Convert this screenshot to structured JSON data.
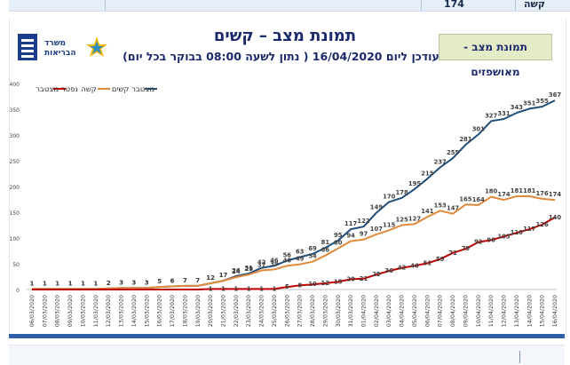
{
  "top_bar": {
    "label": "קשה",
    "value": "174"
  },
  "header": {
    "title": "תמונת מצב – קשים",
    "subtitle": "מעודכן ליום 16/04/2020 ( נתון לשעה 08:00 בבוקר בכל יום)",
    "tag": "תמונת מצב - מאושפזים"
  },
  "logo": {
    "line1": "משרד",
    "line2": "הבריאות"
  },
  "colors": {
    "cumulative": "#1f4e79",
    "severe": "#e08a3c",
    "deaths": "#c00000",
    "tag_bg": "#e4ecc7",
    "title": "#1b2a6b"
  },
  "chart_data": {
    "type": "line",
    "x": [
      "06/03/2020",
      "07/03/2020",
      "08/03/2020",
      "09/03/2020",
      "10/03/2020",
      "11/03/2020",
      "12/03/2020",
      "13/03/2020",
      "14/03/2020",
      "15/03/2020",
      "16/03/2020",
      "17/03/2020",
      "18/03/2020",
      "19/03/2020",
      "20/03/2020",
      "21/03/2020",
      "22/03/2020",
      "23/03/2020",
      "24/03/2020",
      "25/03/2020",
      "26/03/2020",
      "27/03/2020",
      "28/03/2020",
      "29/03/2020",
      "30/03/2020",
      "31/03/2020",
      "01/04/2020",
      "02/04/2020",
      "03/04/2020",
      "04/04/2020",
      "05/04/2020",
      "06/04/2020",
      "07/04/2020",
      "08/04/2020",
      "09/04/2020",
      "10/04/2020",
      "11/04/2020",
      "12/04/2020",
      "13/04/2020",
      "14/04/2020",
      "15/04/2020",
      "16/04/2020"
    ],
    "series": [
      {
        "name": "מצטבר קשים",
        "values": [
          1,
          1,
          1,
          1,
          1,
          1,
          2,
          3,
          3,
          3,
          5,
          6,
          7,
          7,
          12,
          17,
          26,
          31,
          42,
          46,
          56,
          63,
          69,
          81,
          95,
          117,
          122,
          149,
          170,
          178,
          195,
          215,
          237,
          255,
          281,
          301,
          327,
          331,
          343,
          351,
          355,
          367
        ]
      },
      {
        "name": "קשה",
        "values": [
          1,
          1,
          1,
          1,
          1,
          1,
          2,
          3,
          3,
          3,
          5,
          6,
          7,
          7,
          12,
          17,
          24,
          29,
          37,
          39,
          46,
          49,
          54,
          66,
          80,
          94,
          97,
          107,
          115,
          125,
          127,
          141,
          153,
          147,
          165,
          164,
          180,
          174,
          181,
          181,
          176,
          174
        ]
      },
      {
        "name": "נפטר מצטבר",
        "values": [
          0,
          0,
          0,
          0,
          0,
          0,
          0,
          0,
          0,
          0,
          0,
          0,
          0,
          0,
          1,
          1,
          1,
          1,
          1,
          1,
          5,
          8,
          10,
          12,
          15,
          20,
          21,
          29,
          36,
          42,
          46,
          51,
          59,
          71,
          79,
          92,
          96,
          103,
          110,
          117,
          126,
          140
        ]
      }
    ],
    "ylim": [
      0,
      400
    ],
    "yticks": [
      0,
      50,
      100,
      150,
      200,
      250,
      300,
      350,
      400
    ],
    "grid": false,
    "legend": "top-left"
  }
}
